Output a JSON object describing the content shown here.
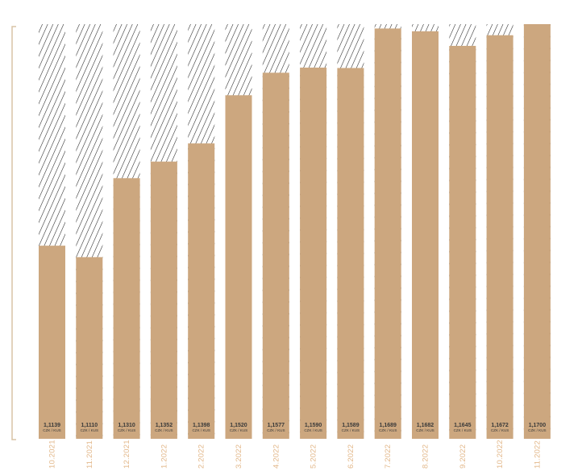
{
  "chart_data": {
    "type": "bar",
    "title": "",
    "xlabel": "",
    "ylabel": "",
    "unit_label": "CZK / KUS",
    "categories": [
      "10.2021",
      "11.2021",
      "12.2021",
      "1.2022",
      "2.2022",
      "3.2022",
      "4.2022",
      "5.2022",
      "6.2022",
      "7.2022",
      "8.2022",
      "9.2022",
      "10.2022",
      "11.2022"
    ],
    "values": [
      1.1139,
      1.111,
      1.131,
      1.1352,
      1.1398,
      1.152,
      1.1577,
      1.159,
      1.1589,
      1.1689,
      1.1682,
      1.1645,
      1.1672,
      1.17
    ],
    "value_labels": [
      "1,1139",
      "1,1110",
      "1,1310",
      "1,1352",
      "1,1398",
      "1,1520",
      "1,1577",
      "1,1590",
      "1,1589",
      "1,1689",
      "1,1682",
      "1,1645",
      "1,1672",
      "1,1700"
    ],
    "background": "hatched",
    "grid": false,
    "legend": "none"
  },
  "colors": {
    "bar": "#cca77f",
    "hatch": "#222222",
    "bracket": "#d8c3a5",
    "category_label": "#e3b98c",
    "value_text": "#3a3a3a"
  }
}
